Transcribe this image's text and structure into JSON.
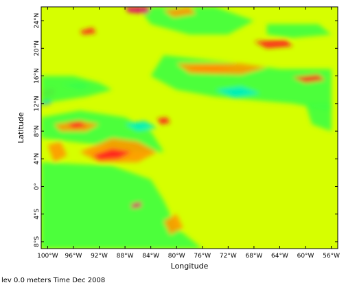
{
  "chart_data": {
    "type": "heatmap",
    "title": "",
    "xlabel": "Longitude",
    "ylabel": "Latitude",
    "xlim": [
      -101,
      -55
    ],
    "ylim": [
      -9,
      26
    ],
    "x_ticks": [
      {
        "value": -100,
        "label": "100°W"
      },
      {
        "value": -96,
        "label": "96°W"
      },
      {
        "value": -92,
        "label": "92°W"
      },
      {
        "value": -88,
        "label": "88°W"
      },
      {
        "value": -84,
        "label": "84°W"
      },
      {
        "value": -80,
        "label": "80°W"
      },
      {
        "value": -76,
        "label": "76°W"
      },
      {
        "value": -72,
        "label": "72°W"
      },
      {
        "value": -68,
        "label": "68°W"
      },
      {
        "value": -64,
        "label": "64°W"
      },
      {
        "value": -60,
        "label": "60°W"
      },
      {
        "value": -56,
        "label": "56°W"
      }
    ],
    "y_ticks": [
      {
        "value": 24,
        "label": "24°N"
      },
      {
        "value": 20,
        "label": "20°N"
      },
      {
        "value": 16,
        "label": "16°N"
      },
      {
        "value": 12,
        "label": "12°N"
      },
      {
        "value": 8,
        "label": "8°N"
      },
      {
        "value": 4,
        "label": "4°N"
      },
      {
        "value": 0,
        "label": "0°"
      },
      {
        "value": -4,
        "label": "4°S"
      },
      {
        "value": -8,
        "label": "8°S"
      }
    ],
    "colors": {
      "background": "#d6ff00",
      "green": "#40ff40",
      "cyan": "#00f0c0",
      "orange": "#ff9a00",
      "red": "#ff2020",
      "magenta": "#e00070",
      "blue": "#0050ff"
    },
    "features": [
      {
        "name": "pacific-green-band",
        "color": "green",
        "polygon": [
          [
            -101,
            3.5
          ],
          [
            -90,
            3
          ],
          [
            -84,
            1
          ],
          [
            -82,
            -2
          ],
          [
            -80,
            -6
          ],
          [
            -76,
            -9
          ],
          [
            -101,
            -9
          ]
        ]
      },
      {
        "name": "pacific-north-green",
        "color": "green",
        "polygon": [
          [
            -101,
            10
          ],
          [
            -95,
            11
          ],
          [
            -88,
            10
          ],
          [
            -84,
            8
          ],
          [
            -82,
            5
          ],
          [
            -86,
            5
          ],
          [
            -92,
            6
          ],
          [
            -101,
            7
          ]
        ]
      },
      {
        "name": "pacific-orange-1",
        "color": "orange",
        "polygon": [
          [
            -95,
            5
          ],
          [
            -90,
            7
          ],
          [
            -86,
            6.5
          ],
          [
            -83,
            5
          ],
          [
            -86,
            3.5
          ],
          [
            -92,
            3.5
          ]
        ]
      },
      {
        "name": "pacific-red-1",
        "color": "red",
        "polygon": [
          [
            -93,
            4.5
          ],
          [
            -90,
            5.5
          ],
          [
            -87,
            5
          ],
          [
            -89,
            4
          ],
          [
            -92,
            3.8
          ]
        ]
      },
      {
        "name": "pacific-orange-2",
        "color": "orange",
        "polygon": [
          [
            -99,
            9
          ],
          [
            -95,
            9.5
          ],
          [
            -92,
            9
          ],
          [
            -94,
            8
          ],
          [
            -98,
            8
          ]
        ]
      },
      {
        "name": "pacific-red-2",
        "color": "red",
        "polygon": [
          [
            -97,
            9.2
          ],
          [
            -95,
            9.5
          ],
          [
            -94,
            8.7
          ],
          [
            -96,
            8.4
          ]
        ]
      },
      {
        "name": "pacific-orange-3",
        "color": "orange",
        "polygon": [
          [
            -100,
            6
          ],
          [
            -98,
            6.5
          ],
          [
            -97,
            4.5
          ],
          [
            -99,
            3.5
          ]
        ]
      },
      {
        "name": "pacific-cyan-1",
        "color": "cyan",
        "polygon": [
          [
            -88,
            9
          ],
          [
            -85,
            9.5
          ],
          [
            -83,
            8.5
          ],
          [
            -86,
            8
          ]
        ]
      },
      {
        "name": "pacific-cyan-2",
        "color": "cyan",
        "polygon": [
          [
            -98,
            14.8
          ],
          [
            -95,
            15
          ],
          [
            -93,
            14.5
          ],
          [
            -95,
            14
          ]
        ]
      },
      {
        "name": "pacific-red-3",
        "color": "red",
        "polygon": [
          [
            -101,
            13.8
          ],
          [
            -99,
            14.2
          ],
          [
            -99,
            13.3
          ],
          [
            -101,
            13
          ]
        ]
      },
      {
        "name": "pacific-blue",
        "color": "blue",
        "polygon": [
          [
            -101,
            12.5
          ],
          [
            -99.5,
            12.7
          ],
          [
            -99.5,
            12
          ],
          [
            -101,
            11.8
          ]
        ]
      },
      {
        "name": "pacific-green-coast",
        "color": "green",
        "polygon": [
          [
            -101,
            16
          ],
          [
            -96,
            16
          ],
          [
            -92,
            15
          ],
          [
            -90,
            14
          ],
          [
            -94,
            13
          ],
          [
            -101,
            12
          ]
        ]
      },
      {
        "name": "panama-red",
        "color": "red",
        "polygon": [
          [
            -83,
            9.8
          ],
          [
            -81.5,
            10
          ],
          [
            -81,
            9.2
          ],
          [
            -82.5,
            9
          ]
        ]
      },
      {
        "name": "pacific-orange-south",
        "color": "orange",
        "polygon": [
          [
            -82,
            -5
          ],
          [
            -80,
            -4
          ],
          [
            -79,
            -6
          ],
          [
            -81,
            -7
          ]
        ]
      },
      {
        "name": "pacific-magenta-south",
        "color": "magenta",
        "polygon": [
          [
            -87,
            -2.5
          ],
          [
            -85.5,
            -2.2
          ],
          [
            -85.5,
            -3
          ],
          [
            -87,
            -3.2
          ]
        ]
      },
      {
        "name": "caribbean-green-band",
        "color": "green",
        "polygon": [
          [
            -82,
            19
          ],
          [
            -72,
            18
          ],
          [
            -64,
            17
          ],
          [
            -56,
            17
          ],
          [
            -56,
            11
          ],
          [
            -62,
            12
          ],
          [
            -68,
            12.5
          ],
          [
            -74,
            13
          ],
          [
            -80,
            14
          ],
          [
            -84,
            16
          ]
        ]
      },
      {
        "name": "caribbean-cyan",
        "color": "cyan",
        "polygon": [
          [
            -74,
            14
          ],
          [
            -70,
            14.5
          ],
          [
            -67,
            13.5
          ],
          [
            -71,
            12.8
          ]
        ]
      },
      {
        "name": "caribbean-red-band",
        "color": "red",
        "polygon": [
          [
            -78,
            17.4
          ],
          [
            -74,
            17.6
          ],
          [
            -71,
            17
          ],
          [
            -74,
            16.4
          ],
          [
            -77,
            16.6
          ]
        ]
      },
      {
        "name": "caribbean-orange-band",
        "color": "orange",
        "polygon": [
          [
            -80,
            17.8
          ],
          [
            -70,
            17.8
          ],
          [
            -66,
            17.2
          ],
          [
            -70,
            16.2
          ],
          [
            -78,
            16.4
          ]
        ]
      },
      {
        "name": "gulf-green",
        "color": "green",
        "polygon": [
          [
            -86,
            26
          ],
          [
            -74,
            26
          ],
          [
            -68,
            24
          ],
          [
            -72,
            22
          ],
          [
            -78,
            22
          ],
          [
            -84,
            23.5
          ]
        ]
      },
      {
        "name": "gulf-magenta",
        "color": "magenta",
        "polygon": [
          [
            -88,
            26
          ],
          [
            -84,
            26
          ],
          [
            -84.5,
            25
          ],
          [
            -87.5,
            25.2
          ]
        ]
      },
      {
        "name": "gulf-orange",
        "color": "orange",
        "polygon": [
          [
            -82,
            25.5
          ],
          [
            -78,
            26
          ],
          [
            -77,
            25
          ],
          [
            -80.5,
            24.5
          ]
        ]
      },
      {
        "name": "gulf-red",
        "color": "red",
        "polygon": [
          [
            -95,
            22.5
          ],
          [
            -93,
            23
          ],
          [
            -92.5,
            22.2
          ],
          [
            -94.5,
            22
          ]
        ]
      },
      {
        "name": "atlantic-red-north",
        "color": "red",
        "polygon": [
          [
            -68,
            21
          ],
          [
            -63,
            21.2
          ],
          [
            -62,
            20.3
          ],
          [
            -66,
            20
          ]
        ]
      },
      {
        "name": "atlantic-green-north",
        "color": "green",
        "polygon": [
          [
            -66,
            23.5
          ],
          [
            -58,
            23.5
          ],
          [
            -56,
            22
          ],
          [
            -62,
            21.5
          ],
          [
            -66,
            22
          ]
        ]
      },
      {
        "name": "caribbean-red-east",
        "color": "red",
        "polygon": [
          [
            -62,
            15.8
          ],
          [
            -58,
            16.2
          ],
          [
            -57,
            15.4
          ],
          [
            -60,
            15
          ]
        ]
      },
      {
        "name": "atlantic-green-east",
        "color": "green",
        "polygon": [
          [
            -60,
            12
          ],
          [
            -56,
            12
          ],
          [
            -56,
            8
          ],
          [
            -59,
            9
          ]
        ]
      }
    ],
    "mask_polygons": [
      [
        [
          -101,
          26
        ],
        [
          -97,
          26
        ],
        [
          -96,
          24
        ],
        [
          -97,
          22
        ],
        [
          -97,
          20
        ],
        [
          -96,
          19
        ],
        [
          -92,
          18.5
        ],
        [
          -91,
          19.5
        ],
        [
          -90,
          21
        ],
        [
          -87,
          21.5
        ],
        [
          -87,
          18
        ],
        [
          -88,
          16
        ],
        [
          -86,
          16
        ],
        [
          -84,
          15
        ],
        [
          -83,
          12
        ],
        [
          -83,
          10
        ],
        [
          -81,
          9
        ],
        [
          -78,
          9.2
        ],
        [
          -77,
          8
        ],
        [
          -77,
          7
        ],
        [
          -78,
          4
        ],
        [
          -78,
          2
        ],
        [
          -80,
          0
        ],
        [
          -80.5,
          -2
        ],
        [
          -81,
          -5
        ],
        [
          -80,
          -6
        ],
        [
          -79,
          -9
        ],
        [
          -101,
          -9
        ]
      ],
      [
        [
          -83,
          8
        ],
        [
          -78,
          8.5
        ],
        [
          -77,
          7.5
        ],
        [
          -72,
          11.5
        ],
        [
          -67,
          11
        ],
        [
          -62,
          10.5
        ],
        [
          -60,
          9
        ],
        [
          -56,
          6
        ],
        [
          -56,
          -9
        ],
        [
          -79,
          -9
        ],
        [
          -80,
          -6
        ],
        [
          -81,
          -5
        ],
        [
          -80.5,
          -2
        ],
        [
          -80,
          0
        ],
        [
          -78,
          2
        ],
        [
          -78,
          4
        ],
        [
          -77,
          7
        ],
        [
          -80,
          7.5
        ]
      ]
    ],
    "ocean_polygons": [
      [
        [
          -101,
          26
        ],
        [
          -97,
          26
        ],
        [
          -96,
          24
        ],
        [
          -97,
          22
        ],
        [
          -97,
          20
        ],
        [
          -96,
          19
        ],
        [
          -92,
          18.5
        ],
        [
          -91,
          19.5
        ],
        [
          -90,
          21
        ],
        [
          -87,
          21.5
        ],
        [
          -87,
          18
        ],
        [
          -88,
          16
        ],
        [
          -86,
          16
        ],
        [
          -84,
          15
        ],
        [
          -83,
          12
        ],
        [
          -83,
          10
        ],
        [
          -81,
          9
        ],
        [
          -78,
          9.2
        ],
        [
          -77,
          8
        ],
        [
          -77,
          7
        ],
        [
          -78,
          4
        ],
        [
          -78,
          2
        ],
        [
          -80,
          0
        ],
        [
          -80.5,
          -2
        ],
        [
          -81,
          -5
        ],
        [
          -80,
          -6
        ],
        [
          -79,
          -9
        ],
        [
          -56,
          -9
        ],
        [
          -56,
          6
        ],
        [
          -60,
          9
        ],
        [
          -62,
          10.5
        ],
        [
          -67,
          11
        ],
        [
          -72,
          11.5
        ],
        [
          -77,
          7.5
        ],
        [
          -78,
          8.5
        ],
        [
          -83,
          8
        ],
        [
          -80,
          7.5
        ],
        [
          -77,
          7
        ],
        [
          -78,
          4
        ],
        [
          -78,
          2
        ],
        [
          -80,
          0
        ],
        [
          -80.5,
          -2
        ],
        [
          -81,
          -5
        ],
        [
          -80,
          -6
        ],
        [
          -79,
          -9
        ]
      ]
    ]
  },
  "footer": {
    "caption": "lev 0.0 meters Time Dec 2008"
  }
}
